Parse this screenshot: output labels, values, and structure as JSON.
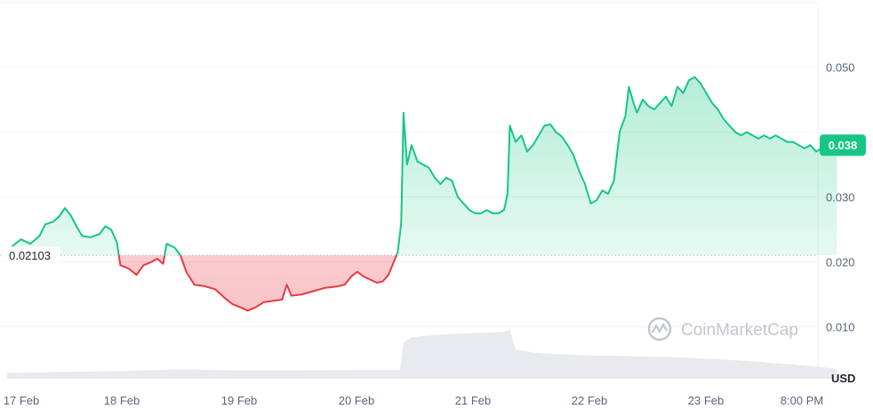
{
  "chart_data": {
    "type": "area",
    "currency": "USD",
    "baseline": {
      "value": 0.02103,
      "label": "0.02103"
    },
    "current_price": {
      "value": 0.038,
      "label": "0.038"
    },
    "ylim": [
      0,
      0.06
    ],
    "y_ticks": [
      {
        "value": 0.05,
        "label": "0.050"
      },
      {
        "value": 0.04,
        "label": ""
      },
      {
        "value": 0.03,
        "label": "0.030"
      },
      {
        "value": 0.02,
        "label": "0.020"
      },
      {
        "value": 0.01,
        "label": "0.010"
      }
    ],
    "x_ticks": [
      "17 Feb",
      "18 Feb",
      "19 Feb",
      "20 Feb",
      "21 Feb",
      "22 Feb",
      "23 Feb",
      "8:00 PM"
    ],
    "x_range": [
      0,
      7.6
    ],
    "series": [
      {
        "points": [
          [
            0.0,
            0.0215
          ],
          [
            0.05,
            0.0225
          ],
          [
            0.12,
            0.0235
          ],
          [
            0.2,
            0.0228
          ],
          [
            0.28,
            0.024
          ],
          [
            0.33,
            0.0258
          ],
          [
            0.4,
            0.0262
          ],
          [
            0.45,
            0.027
          ],
          [
            0.5,
            0.0283
          ],
          [
            0.55,
            0.0272
          ],
          [
            0.6,
            0.0255
          ],
          [
            0.65,
            0.024
          ],
          [
            0.72,
            0.0238
          ],
          [
            0.8,
            0.0243
          ],
          [
            0.85,
            0.0255
          ],
          [
            0.9,
            0.025
          ],
          [
            0.95,
            0.023
          ],
          [
            0.98,
            0.0195
          ],
          [
            1.05,
            0.019
          ],
          [
            1.12,
            0.018
          ],
          [
            1.18,
            0.0195
          ],
          [
            1.25,
            0.02
          ],
          [
            1.3,
            0.0205
          ],
          [
            1.35,
            0.0197
          ],
          [
            1.38,
            0.0228
          ],
          [
            1.45,
            0.0222
          ],
          [
            1.5,
            0.021
          ],
          [
            1.55,
            0.0185
          ],
          [
            1.62,
            0.0165
          ],
          [
            1.7,
            0.0163
          ],
          [
            1.8,
            0.0158
          ],
          [
            1.88,
            0.0145
          ],
          [
            1.95,
            0.0135
          ],
          [
            2.02,
            0.013
          ],
          [
            2.08,
            0.0125
          ],
          [
            2.15,
            0.013
          ],
          [
            2.22,
            0.0138
          ],
          [
            2.3,
            0.014
          ],
          [
            2.38,
            0.0142
          ],
          [
            2.42,
            0.0165
          ],
          [
            2.46,
            0.0148
          ],
          [
            2.55,
            0.015
          ],
          [
            2.65,
            0.0155
          ],
          [
            2.75,
            0.016
          ],
          [
            2.85,
            0.0162
          ],
          [
            2.92,
            0.0165
          ],
          [
            2.98,
            0.0178
          ],
          [
            3.03,
            0.0185
          ],
          [
            3.08,
            0.0178
          ],
          [
            3.15,
            0.0172
          ],
          [
            3.2,
            0.0168
          ],
          [
            3.25,
            0.017
          ],
          [
            3.3,
            0.018
          ],
          [
            3.35,
            0.0202
          ],
          [
            3.38,
            0.0215
          ],
          [
            3.41,
            0.026
          ],
          [
            3.43,
            0.043
          ],
          [
            3.46,
            0.035
          ],
          [
            3.5,
            0.038
          ],
          [
            3.55,
            0.0355
          ],
          [
            3.6,
            0.035
          ],
          [
            3.65,
            0.0345
          ],
          [
            3.7,
            0.033
          ],
          [
            3.75,
            0.032
          ],
          [
            3.8,
            0.033
          ],
          [
            3.85,
            0.0325
          ],
          [
            3.9,
            0.03
          ],
          [
            3.95,
            0.029
          ],
          [
            4.0,
            0.028
          ],
          [
            4.05,
            0.0275
          ],
          [
            4.1,
            0.0275
          ],
          [
            4.15,
            0.028
          ],
          [
            4.2,
            0.0275
          ],
          [
            4.25,
            0.0275
          ],
          [
            4.3,
            0.028
          ],
          [
            4.33,
            0.0305
          ],
          [
            4.35,
            0.041
          ],
          [
            4.4,
            0.0385
          ],
          [
            4.45,
            0.0395
          ],
          [
            4.5,
            0.037
          ],
          [
            4.55,
            0.038
          ],
          [
            4.6,
            0.0395
          ],
          [
            4.65,
            0.041
          ],
          [
            4.7,
            0.0412
          ],
          [
            4.75,
            0.04
          ],
          [
            4.8,
            0.0393
          ],
          [
            4.85,
            0.038
          ],
          [
            4.9,
            0.0365
          ],
          [
            4.95,
            0.034
          ],
          [
            5.0,
            0.032
          ],
          [
            5.05,
            0.029
          ],
          [
            5.1,
            0.0295
          ],
          [
            5.15,
            0.031
          ],
          [
            5.2,
            0.0305
          ],
          [
            5.25,
            0.0325
          ],
          [
            5.3,
            0.04
          ],
          [
            5.35,
            0.0425
          ],
          [
            5.38,
            0.047
          ],
          [
            5.42,
            0.0445
          ],
          [
            5.45,
            0.043
          ],
          [
            5.5,
            0.045
          ],
          [
            5.55,
            0.044
          ],
          [
            5.6,
            0.0435
          ],
          [
            5.65,
            0.0445
          ],
          [
            5.7,
            0.0455
          ],
          [
            5.75,
            0.044
          ],
          [
            5.8,
            0.047
          ],
          [
            5.85,
            0.046
          ],
          [
            5.9,
            0.048
          ],
          [
            5.95,
            0.0485
          ],
          [
            6.0,
            0.0475
          ],
          [
            6.05,
            0.046
          ],
          [
            6.1,
            0.0445
          ],
          [
            6.15,
            0.0435
          ],
          [
            6.2,
            0.042
          ],
          [
            6.25,
            0.041
          ],
          [
            6.3,
            0.04
          ],
          [
            6.35,
            0.0395
          ],
          [
            6.4,
            0.04
          ],
          [
            6.45,
            0.0395
          ],
          [
            6.5,
            0.039
          ],
          [
            6.55,
            0.0395
          ],
          [
            6.6,
            0.039
          ],
          [
            6.65,
            0.0395
          ],
          [
            6.7,
            0.039
          ],
          [
            6.75,
            0.0385
          ],
          [
            6.8,
            0.0385
          ],
          [
            6.85,
            0.038
          ],
          [
            6.9,
            0.0375
          ],
          [
            6.95,
            0.038
          ],
          [
            7.0,
            0.037
          ],
          [
            7.05,
            0.0375
          ],
          [
            7.1,
            0.038
          ],
          [
            7.15,
            0.0385
          ],
          [
            7.18,
            0.038
          ]
        ]
      }
    ],
    "volume": {
      "points": [
        [
          0,
          0.12
        ],
        [
          0.5,
          0.14
        ],
        [
          1.0,
          0.16
        ],
        [
          1.5,
          0.19
        ],
        [
          2.0,
          0.17
        ],
        [
          2.5,
          0.17
        ],
        [
          3.0,
          0.18
        ],
        [
          3.4,
          0.18
        ],
        [
          3.43,
          0.75
        ],
        [
          3.5,
          0.85
        ],
        [
          3.7,
          0.9
        ],
        [
          4.0,
          0.93
        ],
        [
          4.3,
          0.96
        ],
        [
          4.35,
          1.0
        ],
        [
          4.4,
          0.6
        ],
        [
          4.6,
          0.52
        ],
        [
          5.0,
          0.48
        ],
        [
          5.5,
          0.46
        ],
        [
          6.0,
          0.42
        ],
        [
          6.5,
          0.35
        ],
        [
          7.0,
          0.25
        ],
        [
          7.18,
          0.2
        ]
      ]
    },
    "colors": {
      "up": "#16c784",
      "down": "#ea3943",
      "up_fill": "#16c784",
      "down_fill": "#ea3943",
      "grid": "#eff2f5",
      "axis_text": "#58667e",
      "volume": "#e9eaed",
      "price_tag": "#16c784"
    },
    "watermark": "CoinMarketCap",
    "grid": true
  }
}
